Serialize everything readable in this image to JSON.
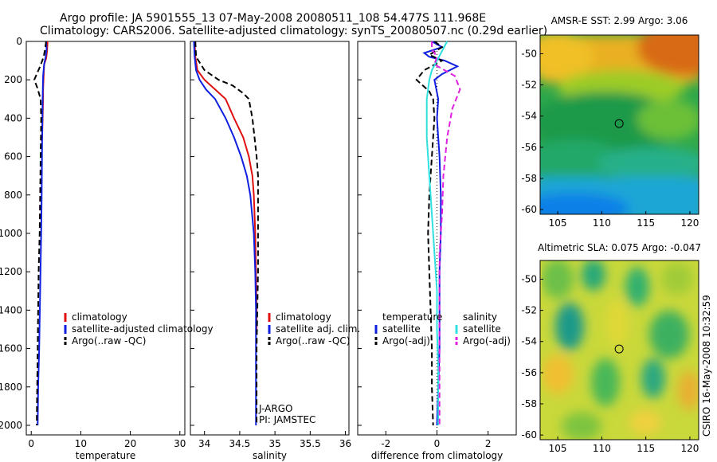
{
  "header": {
    "line1": "Argo profile: JA 5901555_13 07-May-2008 20080511_108 54.477S 111.968E",
    "line2": "Climatology: CARS2006. Satellite-adjusted climatology: synTS_20080507.nc (0.29d earlier)"
  },
  "credit": "CSIRO 16-May-2008 10:32:59",
  "colors": {
    "climatology": "#e01010",
    "satellite": "#1020e0",
    "argo": "#000000",
    "salinity_satellite": "#30e0e0",
    "salinity_argo": "#e020e0"
  },
  "chart_data": [
    {
      "type": "line",
      "name": "temperature-panel",
      "xlabel": "temperature",
      "ylabel": "",
      "xlim": [
        -1,
        31
      ],
      "ylim": [
        2050,
        0
      ],
      "xticks": [
        0,
        10,
        20,
        30
      ],
      "yticks": [
        0,
        200,
        400,
        600,
        800,
        1000,
        1200,
        1400,
        1600,
        1800,
        2000
      ],
      "legend": [
        "climatology",
        "satellite-adjusted climatology",
        "Argo(..raw -QC)"
      ],
      "series": [
        {
          "name": "climatology",
          "color": "#e01010",
          "dash": false,
          "points": [
            [
              3.3,
              0
            ],
            [
              3.2,
              50
            ],
            [
              3.0,
              90
            ],
            [
              2.6,
              120
            ],
            [
              2.5,
              180
            ],
            [
              2.4,
              250
            ],
            [
              2.4,
              300
            ],
            [
              2.3,
              400
            ],
            [
              2.2,
              500
            ],
            [
              2.1,
              520
            ]
          ]
        },
        {
          "name": "satellite-adjusted climatology",
          "color": "#1020e0",
          "dash": false,
          "points": [
            [
              3.0,
              0
            ],
            [
              3.1,
              40
            ],
            [
              2.9,
              80
            ],
            [
              2.6,
              120
            ],
            [
              2.4,
              180
            ],
            [
              2.3,
              300
            ],
            [
              2.2,
              500
            ],
            [
              2.1,
              800
            ],
            [
              2.0,
              1000
            ],
            [
              1.8,
              1300
            ],
            [
              1.6,
              1600
            ],
            [
              1.4,
              1800
            ],
            [
              1.3,
              2000
            ]
          ]
        },
        {
          "name": "Argo(..raw -QC)",
          "color": "#000000",
          "dash": true,
          "points": [
            [
              3.0,
              0
            ],
            [
              2.8,
              40
            ],
            [
              2.5,
              80
            ],
            [
              1.8,
              130
            ],
            [
              0.6,
              200
            ],
            [
              1.2,
              240
            ],
            [
              1.9,
              300
            ],
            [
              2.0,
              400
            ],
            [
              1.9,
              600
            ],
            [
              1.8,
              800
            ],
            [
              1.7,
              1000
            ],
            [
              1.5,
              1200
            ],
            [
              1.4,
              1400
            ],
            [
              1.3,
              1600
            ],
            [
              1.2,
              1800
            ],
            [
              1.1,
              2000
            ]
          ]
        }
      ]
    },
    {
      "type": "line",
      "name": "salinity-panel",
      "xlabel": "salinity",
      "xlim": [
        33.8,
        36.05
      ],
      "ylim": [
        2050,
        0
      ],
      "xticks": [
        34,
        34.5,
        35,
        35.5,
        36
      ],
      "legend": [
        "climatology",
        "satellite adj. clim.",
        "Argo(..raw -QC)"
      ],
      "annotations": [
        "J-ARGO",
        "PI: JAMSTEC"
      ],
      "series": [
        {
          "name": "climatology",
          "color": "#e01010",
          "dash": false,
          "points": [
            [
              33.86,
              0
            ],
            [
              33.87,
              80
            ],
            [
              33.9,
              150
            ],
            [
              34.0,
              200
            ],
            [
              34.15,
              250
            ],
            [
              34.3,
              300
            ],
            [
              34.42,
              400
            ],
            [
              34.55,
              500
            ],
            [
              34.63,
              600
            ],
            [
              34.68,
              700
            ],
            [
              34.7,
              800
            ],
            [
              34.72,
              1000
            ],
            [
              34.73,
              1200
            ],
            [
              34.74,
              1400
            ],
            [
              34.74,
              1500
            ]
          ]
        },
        {
          "name": "satellite adj. clim.",
          "color": "#1020e0",
          "dash": false,
          "points": [
            [
              33.85,
              0
            ],
            [
              33.86,
              80
            ],
            [
              33.88,
              150
            ],
            [
              33.93,
              200
            ],
            [
              34.02,
              250
            ],
            [
              34.15,
              300
            ],
            [
              34.3,
              400
            ],
            [
              34.42,
              500
            ],
            [
              34.52,
              600
            ],
            [
              34.6,
              700
            ],
            [
              34.65,
              800
            ],
            [
              34.7,
              1000
            ],
            [
              34.72,
              1200
            ],
            [
              34.73,
              1400
            ],
            [
              34.73,
              1600
            ],
            [
              34.73,
              1800
            ],
            [
              34.73,
              2000
            ]
          ]
        },
        {
          "name": "Argo(..raw -QC)",
          "color": "#000000",
          "dash": true,
          "points": [
            [
              33.87,
              0
            ],
            [
              33.88,
              80
            ],
            [
              34.0,
              150
            ],
            [
              34.2,
              200
            ],
            [
              34.4,
              230
            ],
            [
              34.55,
              270
            ],
            [
              34.63,
              300
            ],
            [
              34.68,
              400
            ],
            [
              34.71,
              500
            ],
            [
              34.74,
              600
            ],
            [
              34.76,
              700
            ],
            [
              34.76,
              800
            ],
            [
              34.76,
              1000
            ],
            [
              34.76,
              1200
            ],
            [
              34.75,
              1400
            ],
            [
              34.74,
              1600
            ],
            [
              34.74,
              1800
            ],
            [
              34.74,
              2000
            ]
          ]
        }
      ]
    },
    {
      "type": "line",
      "name": "difference-panel",
      "xlabel": "difference from climatology",
      "xlim": [
        -3.1,
        3.1
      ],
      "ylim": [
        2050,
        0
      ],
      "xticks": [
        -2,
        0,
        2
      ],
      "legend_groups": [
        {
          "title": "temperature",
          "items": [
            "satellite",
            "Argo(-adj)"
          ]
        },
        {
          "title": "salinity",
          "items": [
            "satellite",
            "Argo(-adj)"
          ]
        }
      ],
      "series": [
        {
          "name": "temperature satellite",
          "color": "#1020e0",
          "dash": false,
          "points": [
            [
              -0.2,
              0
            ],
            [
              0.2,
              30
            ],
            [
              -0.5,
              60
            ],
            [
              -0.3,
              80
            ],
            [
              0.3,
              100
            ],
            [
              0.8,
              130
            ],
            [
              0.2,
              170
            ],
            [
              -0.1,
              200
            ],
            [
              0.05,
              300
            ],
            [
              0.0,
              400
            ],
            [
              0.1,
              600
            ],
            [
              0.15,
              800
            ],
            [
              0.15,
              1000
            ],
            [
              0.1,
              1200
            ],
            [
              0.1,
              1400
            ],
            [
              0.1,
              1600
            ],
            [
              0.05,
              1800
            ],
            [
              0.0,
              2000
            ]
          ]
        },
        {
          "name": "temperature Argo(-adj)",
          "color": "#000000",
          "dash": true,
          "points": [
            [
              -0.1,
              0
            ],
            [
              0.2,
              30
            ],
            [
              -0.3,
              70
            ],
            [
              0.2,
              100
            ],
            [
              -0.5,
              150
            ],
            [
              -0.8,
              200
            ],
            [
              -0.3,
              260
            ],
            [
              -0.15,
              300
            ],
            [
              -0.1,
              400
            ],
            [
              -0.2,
              600
            ],
            [
              -0.3,
              800
            ],
            [
              -0.35,
              1000
            ],
            [
              -0.3,
              1200
            ],
            [
              -0.25,
              1400
            ],
            [
              -0.2,
              1600
            ],
            [
              -0.2,
              1800
            ],
            [
              -0.15,
              2000
            ]
          ]
        },
        {
          "name": "salinity satellite",
          "color": "#30e0e0",
          "dash": false,
          "points": [
            [
              0.4,
              0
            ],
            [
              0.2,
              50
            ],
            [
              0.0,
              100
            ],
            [
              -0.2,
              150
            ],
            [
              -0.3,
              200
            ],
            [
              -0.4,
              300
            ],
            [
              -0.4,
              500
            ],
            [
              -0.3,
              700
            ],
            [
              -0.2,
              900
            ],
            [
              -0.1,
              1100
            ],
            [
              0.0,
              1300
            ],
            [
              0.0,
              1500
            ],
            [
              0.05,
              1700
            ],
            [
              0.05,
              1900
            ],
            [
              0.05,
              2000
            ]
          ]
        },
        {
          "name": "salinity Argo(-adj)",
          "color": "#e020e0",
          "dash": true,
          "points": [
            [
              -0.2,
              0
            ],
            [
              -0.2,
              40
            ],
            [
              0.0,
              80
            ],
            [
              -0.1,
              120
            ],
            [
              0.3,
              150
            ],
            [
              0.7,
              180
            ],
            [
              0.9,
              250
            ],
            [
              0.6,
              350
            ],
            [
              0.4,
              500
            ],
            [
              0.25,
              700
            ],
            [
              0.2,
              900
            ],
            [
              0.1,
              1100
            ],
            [
              0.1,
              1300
            ],
            [
              0.1,
              1500
            ],
            [
              0.1,
              1700
            ],
            [
              0.1,
              1900
            ],
            [
              0.1,
              2000
            ]
          ]
        }
      ]
    },
    {
      "type": "heatmap",
      "name": "sst-map",
      "title": "AMSR-E SST: 2.99  Argo: 3.06",
      "xlim": [
        103,
        121
      ],
      "ylim": [
        -60.3,
        -48.8
      ],
      "xticks": [
        105,
        110,
        115,
        120
      ],
      "yticks": [
        -50,
        -52,
        -54,
        -56,
        -58,
        -60
      ],
      "marker": {
        "lon": 111.968,
        "lat": -54.477
      }
    },
    {
      "type": "heatmap",
      "name": "sla-map",
      "title": "Altimetric SLA: 0.075  Argo: -0.047",
      "xlim": [
        103,
        121
      ],
      "ylim": [
        -60.3,
        -48.8
      ],
      "xticks": [
        105,
        110,
        115,
        120
      ],
      "yticks": [
        -50,
        -52,
        -54,
        -56,
        -58,
        -60
      ],
      "marker": {
        "lon": 111.968,
        "lat": -54.477
      }
    }
  ]
}
